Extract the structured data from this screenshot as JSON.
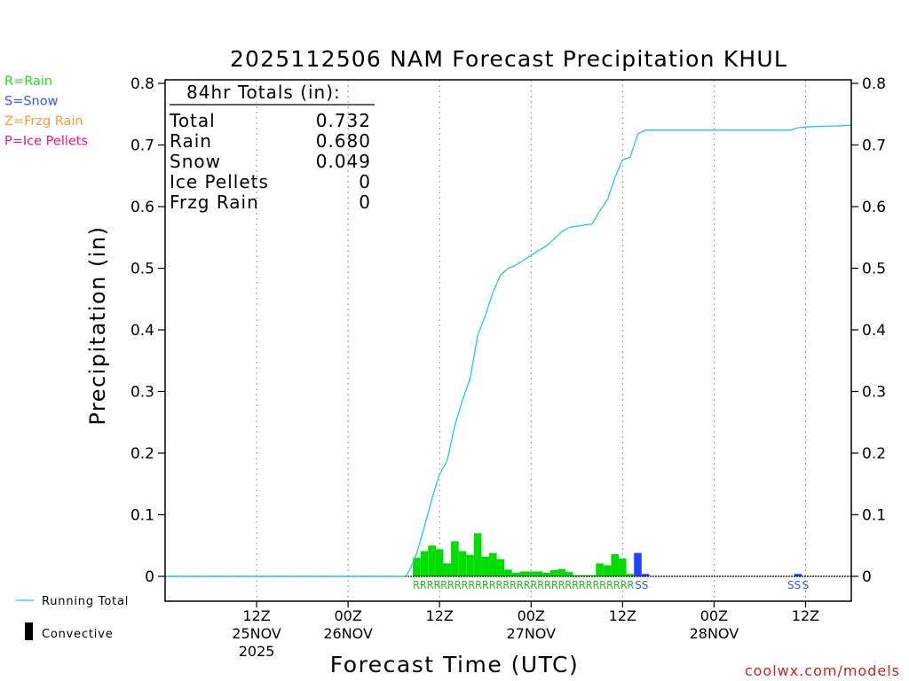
{
  "chart_data": {
    "type": "bar",
    "title": "2025112506 NAM Forecast Precipitation KHUL",
    "xlabel": "Forecast Time (UTC)",
    "ylabel": "Precipitation (in)",
    "ylim": [
      0,
      0.8
    ],
    "y_ticks": [
      "0",
      "0.1",
      "0.2",
      "0.3",
      "0.4",
      "0.5",
      "0.6",
      "0.7",
      "0.8"
    ],
    "x_range_hours": [
      -6,
      84
    ],
    "x_ticks": [
      {
        "hour": 6,
        "lines": [
          "12Z",
          "25NOV",
          "2025"
        ]
      },
      {
        "hour": 18,
        "lines": [
          "00Z",
          "26NOV"
        ]
      },
      {
        "hour": 30,
        "lines": [
          "12Z",
          ""
        ]
      },
      {
        "hour": 42,
        "lines": [
          "00Z",
          "27NOV"
        ]
      },
      {
        "hour": 54,
        "lines": [
          "12Z",
          ""
        ]
      },
      {
        "hour": 66,
        "lines": [
          "00Z",
          "28NOV"
        ]
      },
      {
        "hour": 78,
        "lines": [
          "12Z",
          ""
        ]
      }
    ],
    "totals_box": {
      "header": "84hr Totals (in):",
      "rows": [
        {
          "label": "Total",
          "value": "0.732"
        },
        {
          "label": "Rain",
          "value": "0.680"
        },
        {
          "label": "Snow",
          "value": "0.049"
        },
        {
          "label": "Ice Pellets",
          "value": "0"
        },
        {
          "label": "Frzg Rain",
          "value": "0"
        }
      ]
    },
    "type_legend": [
      {
        "label": "R=Rain",
        "color": "#22dd22"
      },
      {
        "label": "S=Snow",
        "color": "#3355ff"
      },
      {
        "label": "Z=Frzg Rain",
        "color": "#ff9933"
      },
      {
        "label": "P=Ice Pellets",
        "color": "#ee1188"
      }
    ],
    "bottom_legend": {
      "running_total": "Running Total",
      "convective": "Convective"
    },
    "colors": {
      "rain": "#00dd00",
      "snow": "#2244ff",
      "running_total": "#22cccc",
      "rain_label": "#22bb22",
      "snow_label": "#3355ee"
    },
    "bars": [
      {
        "hour": 27,
        "value": 0.03,
        "type": "rain"
      },
      {
        "hour": 28,
        "value": 0.041,
        "type": "rain"
      },
      {
        "hour": 29,
        "value": 0.05,
        "type": "rain"
      },
      {
        "hour": 30,
        "value": 0.044,
        "type": "rain"
      },
      {
        "hour": 31,
        "value": 0.021,
        "type": "rain"
      },
      {
        "hour": 32,
        "value": 0.057,
        "type": "rain"
      },
      {
        "hour": 33,
        "value": 0.041,
        "type": "rain"
      },
      {
        "hour": 34,
        "value": 0.035,
        "type": "rain"
      },
      {
        "hour": 35,
        "value": 0.07,
        "type": "rain"
      },
      {
        "hour": 36,
        "value": 0.032,
        "type": "rain"
      },
      {
        "hour": 37,
        "value": 0.038,
        "type": "rain"
      },
      {
        "hour": 38,
        "value": 0.028,
        "type": "rain"
      },
      {
        "hour": 39,
        "value": 0.011,
        "type": "rain"
      },
      {
        "hour": 40,
        "value": 0.006,
        "type": "rain"
      },
      {
        "hour": 41,
        "value": 0.008,
        "type": "rain"
      },
      {
        "hour": 42,
        "value": 0.008,
        "type": "rain"
      },
      {
        "hour": 43,
        "value": 0.008,
        "type": "rain"
      },
      {
        "hour": 44,
        "value": 0.006,
        "type": "rain"
      },
      {
        "hour": 45,
        "value": 0.01,
        "type": "rain"
      },
      {
        "hour": 46,
        "value": 0.012,
        "type": "rain"
      },
      {
        "hour": 47,
        "value": 0.007,
        "type": "rain"
      },
      {
        "hour": 48,
        "value": 0.002,
        "type": "rain"
      },
      {
        "hour": 49,
        "value": 0.002,
        "type": "rain"
      },
      {
        "hour": 50,
        "value": 0.002,
        "type": "rain"
      },
      {
        "hour": 51,
        "value": 0.021,
        "type": "rain"
      },
      {
        "hour": 52,
        "value": 0.018,
        "type": "rain"
      },
      {
        "hour": 53,
        "value": 0.036,
        "type": "rain"
      },
      {
        "hour": 54,
        "value": 0.029,
        "type": "rain"
      },
      {
        "hour": 55,
        "value": 0.004,
        "type": "rain"
      },
      {
        "hour": 56,
        "value": 0.038,
        "type": "snow"
      },
      {
        "hour": 57,
        "value": 0.004,
        "type": "snow"
      },
      {
        "hour": 77,
        "value": 0.004,
        "type": "snow"
      }
    ],
    "running_total": [
      {
        "hour": -6,
        "value": 0
      },
      {
        "hour": 25.5,
        "value": 0
      },
      {
        "hour": 26,
        "value": 0.008
      },
      {
        "hour": 27,
        "value": 0.037
      },
      {
        "hour": 28,
        "value": 0.08
      },
      {
        "hour": 29,
        "value": 0.126
      },
      {
        "hour": 30,
        "value": 0.166
      },
      {
        "hour": 31,
        "value": 0.188
      },
      {
        "hour": 32,
        "value": 0.245
      },
      {
        "hour": 33,
        "value": 0.286
      },
      {
        "hour": 34,
        "value": 0.321
      },
      {
        "hour": 35,
        "value": 0.391
      },
      {
        "hour": 36,
        "value": 0.423
      },
      {
        "hour": 37,
        "value": 0.461
      },
      {
        "hour": 38,
        "value": 0.489
      },
      {
        "hour": 39,
        "value": 0.5
      },
      {
        "hour": 40,
        "value": 0.505
      },
      {
        "hour": 41,
        "value": 0.513
      },
      {
        "hour": 42,
        "value": 0.521
      },
      {
        "hour": 43,
        "value": 0.529
      },
      {
        "hour": 44,
        "value": 0.536
      },
      {
        "hour": 45,
        "value": 0.547
      },
      {
        "hour": 46,
        "value": 0.559
      },
      {
        "hour": 47,
        "value": 0.566
      },
      {
        "hour": 48,
        "value": 0.568
      },
      {
        "hour": 49,
        "value": 0.57
      },
      {
        "hour": 50,
        "value": 0.572
      },
      {
        "hour": 51,
        "value": 0.593
      },
      {
        "hour": 52,
        "value": 0.611
      },
      {
        "hour": 53,
        "value": 0.647
      },
      {
        "hour": 54,
        "value": 0.676
      },
      {
        "hour": 55,
        "value": 0.68
      },
      {
        "hour": 56,
        "value": 0.718
      },
      {
        "hour": 57,
        "value": 0.724
      },
      {
        "hour": 76,
        "value": 0.724
      },
      {
        "hour": 77,
        "value": 0.728
      },
      {
        "hour": 79,
        "value": 0.73
      },
      {
        "hour": 82,
        "value": 0.731
      },
      {
        "hour": 84,
        "value": 0.732
      }
    ],
    "type_codes": {
      "rain_text": "RRRRRRRRRRRRRRRRRRRRRRRRRRRRRRRR",
      "rain_start_hour": 26.5,
      "rain_end_hour": 55.5,
      "snow_groups": [
        {
          "text": "SS",
          "start_hour": 56,
          "end_hour": 57
        },
        {
          "text": "SS",
          "start_hour": 76,
          "end_hour": 77
        },
        {
          "text": "S",
          "start_hour": 78,
          "end_hour": 78
        }
      ]
    }
  },
  "credit": "coolwx.com/models"
}
